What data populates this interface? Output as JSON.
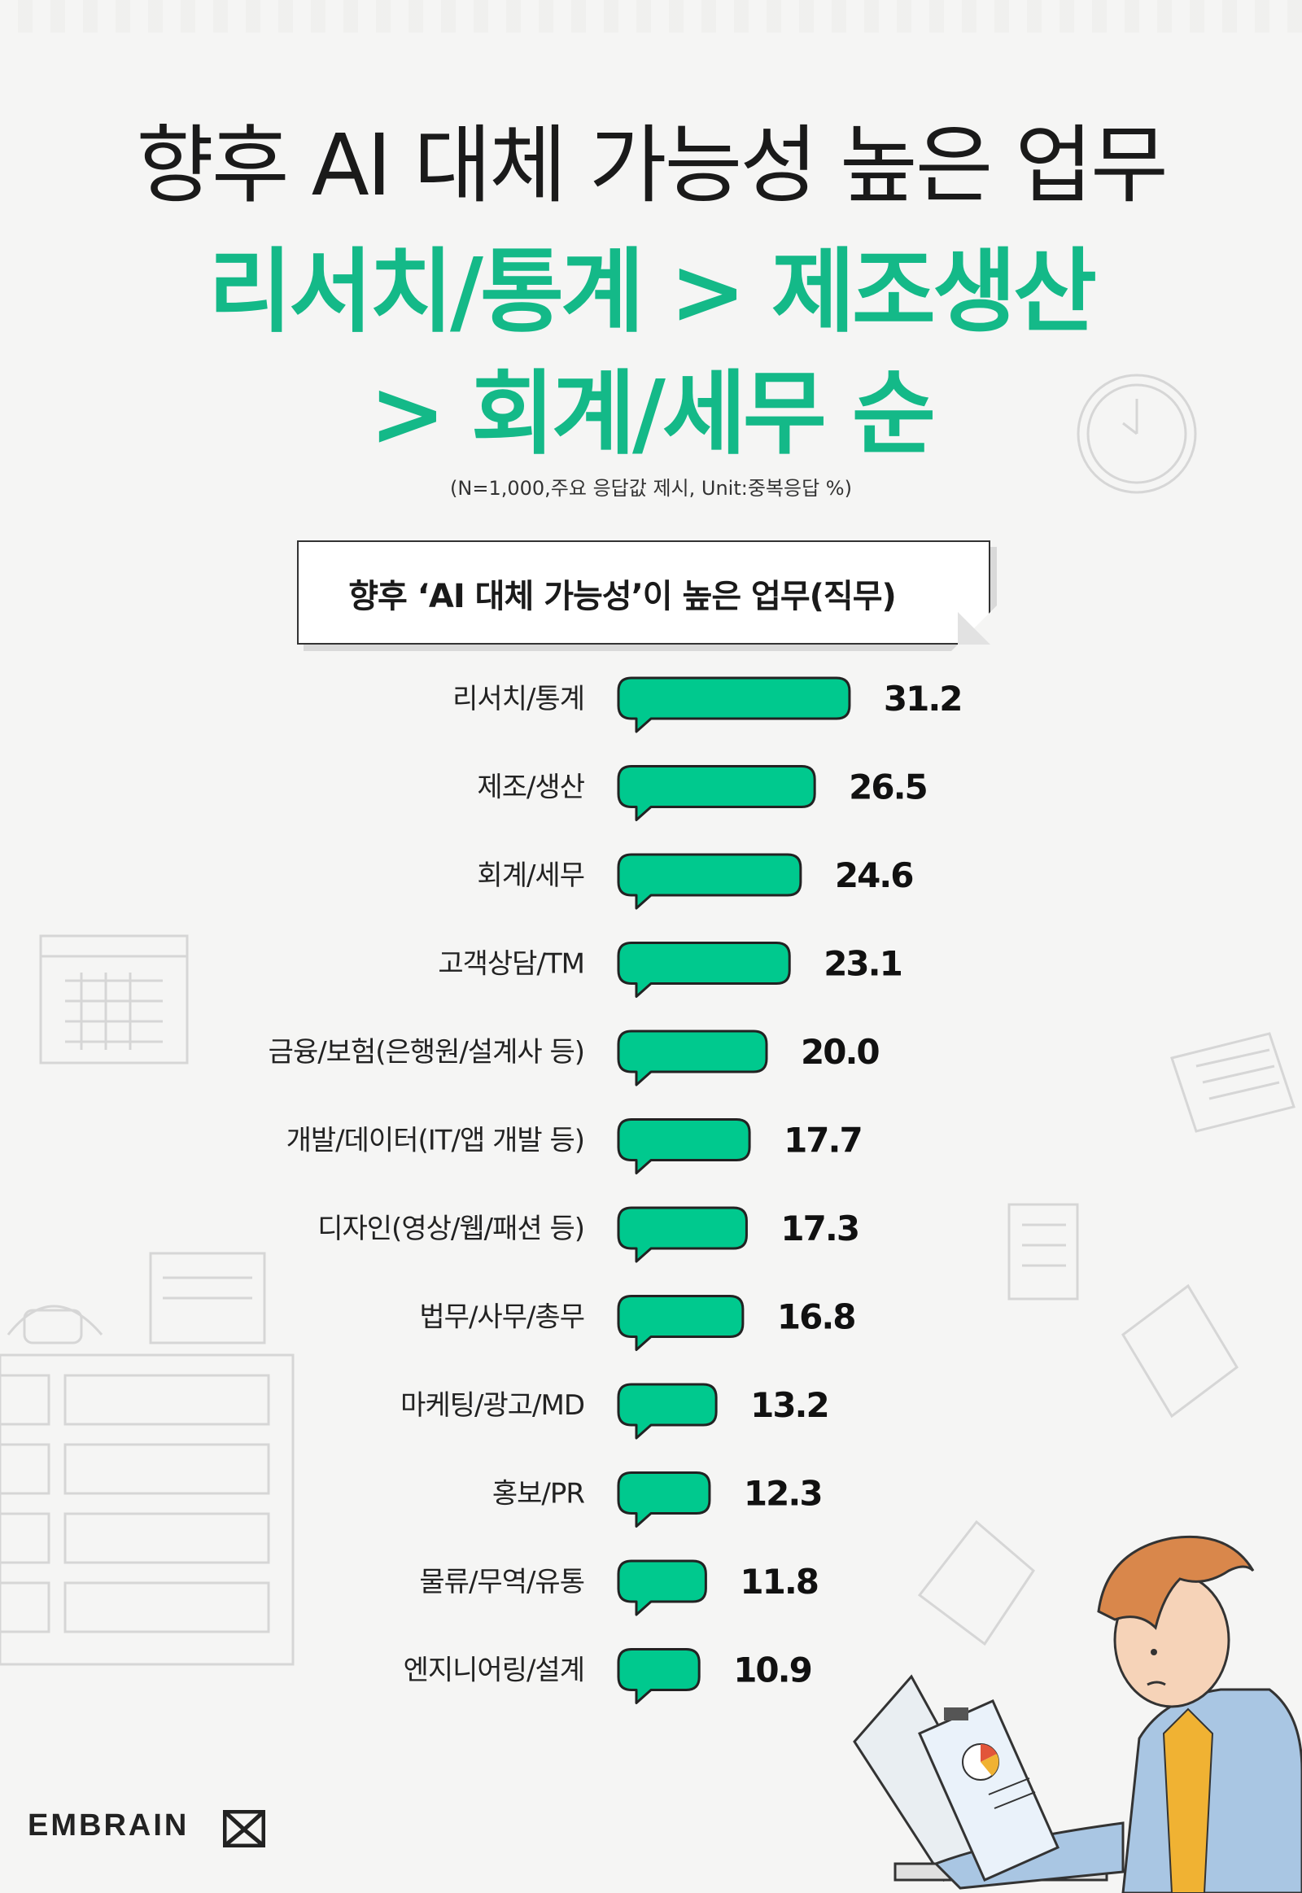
{
  "header": {
    "title": "향후 AI 대체 가능성 높은 업무",
    "subtitle_line1": "리서치/통계 > 제조생산",
    "subtitle_line2": "> 회계/세무 순",
    "note": "(N=1,000,주요 응답값 제시, Unit:중복응답 %)"
  },
  "colors": {
    "accent": "#14b988",
    "bar": "#00c98e",
    "bar_stroke": "#222222"
  },
  "chart_data": {
    "type": "bar",
    "orientation": "horizontal",
    "title": "향후 ‘AI 대체 가능성’이 높은 업무(직무)",
    "categories": [
      "리서치/통계",
      "제조/생산",
      "회계/세무",
      "고객상담/TM",
      "금융/보험(은행원/설계사 등)",
      "개발/데이터(IT/앱 개발 등)",
      "디자인(영상/웹/패션 등)",
      "법무/사무/총무",
      "마케팅/광고/MD",
      "홍보/PR",
      "물류/무역/유통",
      "엔지니어링/설계"
    ],
    "value_labels": [
      "31.2",
      "26.5",
      "24.6",
      "23.1",
      "20.0",
      "17.7",
      "17.3",
      "16.8",
      "13.2",
      "12.3",
      "11.8",
      "10.9"
    ],
    "values": [
      31.2,
      26.5,
      24.6,
      23.1,
      20.0,
      17.7,
      17.3,
      16.8,
      13.2,
      12.3,
      11.8,
      10.9
    ],
    "unit": "%"
  },
  "footer": {
    "brand": "EMBRAIN"
  }
}
